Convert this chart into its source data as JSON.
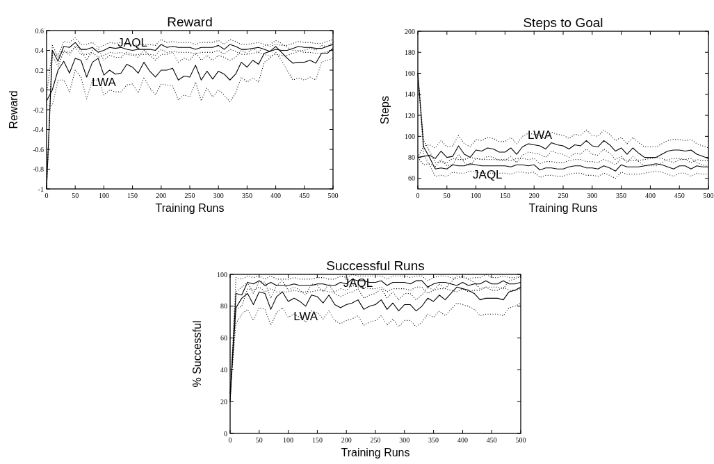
{
  "chart_data": [
    {
      "type": "line",
      "title": "Reward",
      "xlabel": "Training Runs",
      "ylabel": "Reward",
      "x": [
        0,
        10,
        20,
        30,
        40,
        50,
        60,
        70,
        80,
        90,
        100,
        110,
        120,
        130,
        140,
        150,
        160,
        170,
        180,
        190,
        200,
        210,
        220,
        230,
        240,
        250,
        260,
        270,
        280,
        290,
        300,
        310,
        320,
        330,
        340,
        350,
        360,
        370,
        380,
        390,
        400,
        410,
        420,
        430,
        440,
        450,
        460,
        470,
        480,
        490,
        500
      ],
      "xlim": [
        0,
        500
      ],
      "xticks": [
        0,
        50,
        100,
        150,
        200,
        250,
        300,
        350,
        400,
        450,
        500
      ],
      "ylim": [
        -1,
        0.6
      ],
      "yticks": [
        -1,
        -0.8,
        -0.6,
        -0.4,
        -0.2,
        0,
        0.2,
        0.4,
        0.6
      ],
      "series": [
        {
          "name": "JAQL",
          "color": "#000000",
          "values": [
            -1,
            0.4,
            0.29,
            0.44,
            0.43,
            0.48,
            0.41,
            0.41,
            0.43,
            0.38,
            0.4,
            0.43,
            0.42,
            0.43,
            0.41,
            0.4,
            0.41,
            0.41,
            0.41,
            0.4,
            0.46,
            0.43,
            0.44,
            0.43,
            0.43,
            0.43,
            0.41,
            0.43,
            0.43,
            0.43,
            0.45,
            0.41,
            0.46,
            0.44,
            0.41,
            0.41,
            0.42,
            0.43,
            0.41,
            0.39,
            0.41,
            0.4,
            0.4,
            0.42,
            0.44,
            0.43,
            0.43,
            0.42,
            0.42,
            0.44,
            0.46
          ]
        },
        {
          "name": "LWA",
          "color": "#000000",
          "values": [
            -0.11,
            0.0,
            0.2,
            0.29,
            0.17,
            0.32,
            0.3,
            0.13,
            0.28,
            0.32,
            0.15,
            0.2,
            0.16,
            0.17,
            0.26,
            0.23,
            0.17,
            0.28,
            0.19,
            0.13,
            0.2,
            0.2,
            0.22,
            0.1,
            0.14,
            0.13,
            0.25,
            0.1,
            0.19,
            0.11,
            0.19,
            0.16,
            0.1,
            0.16,
            0.28,
            0.23,
            0.3,
            0.26,
            0.37,
            0.39,
            0.44,
            0.38,
            0.32,
            0.27,
            0.28,
            0.28,
            0.3,
            0.27,
            0.37,
            0.37,
            0.42
          ]
        },
        {
          "color": "#000000",
          "line_style": "dotted",
          "values": [
            -1,
            0.45,
            0.34,
            0.49,
            0.48,
            0.53,
            0.46,
            0.46,
            0.48,
            0.43,
            0.45,
            0.48,
            0.47,
            0.48,
            0.46,
            0.45,
            0.46,
            0.46,
            0.46,
            0.45,
            0.51,
            0.48,
            0.49,
            0.48,
            0.48,
            0.48,
            0.46,
            0.48,
            0.48,
            0.48,
            0.5,
            0.46,
            0.51,
            0.49,
            0.46,
            0.46,
            0.47,
            0.48,
            0.46,
            0.44,
            0.46,
            0.45,
            0.45,
            0.47,
            0.49,
            0.48,
            0.48,
            0.47,
            0.47,
            0.49,
            0.51
          ]
        },
        {
          "color": "#000000",
          "line_style": "dotted",
          "values": [
            -1,
            0.35,
            0.24,
            0.39,
            0.38,
            0.43,
            0.36,
            0.36,
            0.38,
            0.33,
            0.35,
            0.38,
            0.37,
            0.38,
            0.36,
            0.35,
            0.36,
            0.36,
            0.36,
            0.35,
            0.41,
            0.38,
            0.39,
            0.38,
            0.38,
            0.38,
            0.36,
            0.38,
            0.38,
            0.38,
            0.4,
            0.36,
            0.41,
            0.39,
            0.36,
            0.36,
            0.37,
            0.38,
            0.36,
            0.34,
            0.36,
            0.35,
            0.35,
            0.37,
            0.39,
            0.38,
            0.38,
            0.37,
            0.37,
            0.39,
            0.41
          ]
        },
        {
          "color": "#000000",
          "line_style": "dotted",
          "values": [
            -0.05,
            0.4,
            0.33,
            0.4,
            0.35,
            0.45,
            0.4,
            0.3,
            0.4,
            0.42,
            0.3,
            0.35,
            0.33,
            0.33,
            0.38,
            0.36,
            0.33,
            0.4,
            0.35,
            0.3,
            0.36,
            0.36,
            0.38,
            0.28,
            0.32,
            0.3,
            0.38,
            0.3,
            0.35,
            0.3,
            0.35,
            0.33,
            0.3,
            0.33,
            0.4,
            0.37,
            0.42,
            0.38,
            0.45,
            0.46,
            0.5,
            0.47,
            0.43,
            0.4,
            0.4,
            0.4,
            0.42,
            0.4,
            0.45,
            0.44,
            0.48
          ]
        },
        {
          "color": "#000000",
          "line_style": "dotted",
          "values": [
            -0.15,
            -0.16,
            0.1,
            0.1,
            -0.02,
            0.2,
            0.13,
            -0.09,
            0.1,
            0.1,
            -0.05,
            0.0,
            -0.02,
            -0.02,
            0.05,
            0.06,
            -0.03,
            0.13,
            0.02,
            -0.05,
            0.06,
            0.05,
            0.04,
            -0.1,
            -0.05,
            -0.07,
            0.08,
            -0.11,
            0.02,
            -0.07,
            0.0,
            -0.05,
            -0.12,
            -0.03,
            0.13,
            0.08,
            0.12,
            0.08,
            0.28,
            0.32,
            0.38,
            0.3,
            0.2,
            0.1,
            0.12,
            0.1,
            0.13,
            0.1,
            0.28,
            0.3,
            0.32
          ]
        }
      ]
    },
    {
      "type": "line",
      "title": "Steps to Goal",
      "xlabel": "Training Runs",
      "ylabel": "Steps",
      "x": [
        0,
        10,
        20,
        30,
        40,
        50,
        60,
        70,
        80,
        90,
        100,
        110,
        120,
        130,
        140,
        150,
        160,
        170,
        180,
        190,
        200,
        210,
        220,
        230,
        240,
        250,
        260,
        270,
        280,
        290,
        300,
        310,
        320,
        330,
        340,
        350,
        360,
        370,
        380,
        390,
        400,
        410,
        420,
        430,
        440,
        450,
        460,
        470,
        480,
        490,
        500
      ],
      "xlim": [
        0,
        500
      ],
      "xticks": [
        0,
        50,
        100,
        150,
        200,
        250,
        300,
        350,
        400,
        450,
        500
      ],
      "ylim": [
        50,
        200
      ],
      "yticks": [
        60,
        80,
        100,
        120,
        140,
        160,
        180,
        200
      ],
      "series": [
        {
          "name": "LWA",
          "color": "#000000",
          "values": [
            80,
            81,
            82,
            79,
            86,
            80,
            81,
            91,
            83,
            80,
            87,
            86,
            89,
            88,
            85,
            85,
            89,
            83,
            90,
            93,
            92,
            91,
            88,
            94,
            92,
            91,
            88,
            92,
            91,
            96,
            91,
            90,
            96,
            92,
            86,
            89,
            83,
            89,
            84,
            80,
            80,
            80,
            83,
            86,
            87,
            87,
            86,
            87,
            83,
            81,
            79
          ]
        },
        {
          "name": "JAQL",
          "color": "#000000",
          "values": [
            160,
            90,
            80,
            69,
            70,
            69,
            73,
            72,
            72,
            74,
            73,
            72,
            72,
            72,
            72,
            72,
            71,
            73,
            73,
            72,
            73,
            68,
            70,
            70,
            69,
            69,
            71,
            72,
            72,
            70,
            70,
            69,
            72,
            70,
            67,
            73,
            71,
            71,
            71,
            72,
            73,
            74,
            73,
            71,
            69,
            72,
            72,
            69,
            72,
            71,
            71
          ]
        },
        {
          "color": "#000000",
          "line_style": "dotted",
          "values": [
            80,
            91,
            92,
            89,
            96,
            90,
            91,
            101,
            93,
            90,
            97,
            96,
            99,
            98,
            95,
            95,
            99,
            93,
            100,
            103,
            102,
            101,
            98,
            104,
            102,
            101,
            98,
            102,
            101,
            106,
            101,
            100,
            106,
            102,
            96,
            99,
            93,
            99,
            94,
            90,
            90,
            90,
            93,
            96,
            97,
            97,
            96,
            97,
            93,
            91,
            89
          ]
        },
        {
          "color": "#000000",
          "line_style": "dotted",
          "values": [
            80,
            73,
            74,
            71,
            78,
            72,
            73,
            83,
            75,
            72,
            79,
            78,
            81,
            80,
            77,
            77,
            81,
            75,
            82,
            85,
            84,
            83,
            80,
            86,
            84,
            83,
            80,
            84,
            83,
            88,
            83,
            82,
            88,
            84,
            78,
            81,
            75,
            81,
            76,
            72,
            72,
            72,
            75,
            78,
            79,
            79,
            78,
            79,
            75,
            73,
            71
          ]
        },
        {
          "color": "#000000",
          "line_style": "dotted",
          "values": [
            160,
            96,
            86,
            75,
            76,
            75,
            79,
            78,
            78,
            80,
            79,
            78,
            78,
            78,
            78,
            78,
            77,
            79,
            79,
            78,
            79,
            74,
            76,
            76,
            75,
            75,
            77,
            78,
            78,
            76,
            76,
            75,
            78,
            76,
            73,
            79,
            77,
            77,
            77,
            78,
            79,
            80,
            79,
            77,
            75,
            78,
            78,
            75,
            78,
            77,
            77
          ]
        },
        {
          "color": "#000000",
          "line_style": "dotted",
          "values": [
            160,
            83,
            73,
            62,
            63,
            62,
            66,
            65,
            65,
            67,
            66,
            65,
            65,
            65,
            65,
            65,
            64,
            66,
            66,
            65,
            66,
            61,
            63,
            63,
            62,
            62,
            64,
            65,
            65,
            63,
            63,
            62,
            65,
            63,
            60,
            66,
            64,
            64,
            64,
            65,
            66,
            67,
            66,
            64,
            62,
            65,
            65,
            62,
            65,
            64,
            64
          ]
        }
      ]
    },
    {
      "type": "line",
      "title": "Successful Runs",
      "xlabel": "Training Runs",
      "ylabel": "% Successful",
      "x": [
        0,
        10,
        20,
        30,
        40,
        50,
        60,
        70,
        80,
        90,
        100,
        110,
        120,
        130,
        140,
        150,
        160,
        170,
        180,
        190,
        200,
        210,
        220,
        230,
        240,
        250,
        260,
        270,
        280,
        290,
        300,
        310,
        320,
        330,
        340,
        350,
        360,
        370,
        380,
        390,
        400,
        410,
        420,
        430,
        440,
        450,
        460,
        470,
        480,
        490,
        500
      ],
      "xlim": [
        0,
        500
      ],
      "xticks": [
        0,
        50,
        100,
        150,
        200,
        250,
        300,
        350,
        400,
        450,
        500
      ],
      "ylim": [
        0,
        100
      ],
      "yticks": [
        0,
        20,
        40,
        60,
        80,
        100
      ],
      "series": [
        {
          "name": "JAQL",
          "color": "#000000",
          "values": [
            20,
            88,
            87,
            95,
            94,
            96,
            93,
            95,
            93,
            93,
            93,
            94,
            93,
            93,
            93,
            94,
            94,
            93,
            93,
            95,
            94,
            97,
            96,
            96,
            95,
            95,
            96,
            93,
            95,
            95,
            95,
            94,
            96,
            96,
            92,
            94,
            95,
            95,
            94,
            93,
            95,
            93,
            94,
            94,
            96,
            94,
            94,
            96,
            94,
            94,
            95
          ]
        },
        {
          "name": "LWA",
          "color": "#000000",
          "values": [
            25,
            79,
            85,
            88,
            81,
            89,
            88,
            78,
            86,
            89,
            83,
            85,
            83,
            80,
            87,
            86,
            82,
            87,
            81,
            79,
            81,
            82,
            84,
            78,
            80,
            81,
            84,
            78,
            82,
            77,
            81,
            81,
            77,
            80,
            85,
            83,
            87,
            84,
            88,
            92,
            91,
            90,
            88,
            84,
            85,
            85,
            85,
            84,
            89,
            90,
            92
          ]
        },
        {
          "color": "#000000",
          "line_style": "dotted",
          "values": [
            20,
            98,
            97,
            99,
            98,
            99,
            97,
            99,
            97,
            97,
            97,
            98,
            97,
            97,
            97,
            98,
            98,
            97,
            97,
            99,
            98,
            100,
            99,
            99,
            99,
            99,
            99,
            97,
            99,
            99,
            99,
            98,
            99,
            99,
            96,
            98,
            99,
            99,
            98,
            97,
            99,
            97,
            98,
            98,
            100,
            98,
            98,
            99,
            98,
            98,
            99
          ]
        },
        {
          "color": "#000000",
          "line_style": "dotted",
          "values": [
            20,
            78,
            80,
            91,
            90,
            92,
            89,
            91,
            89,
            89,
            89,
            90,
            89,
            89,
            89,
            90,
            90,
            89,
            89,
            91,
            90,
            93,
            92,
            92,
            91,
            91,
            92,
            89,
            91,
            91,
            91,
            90,
            92,
            92,
            88,
            90,
            91,
            91,
            90,
            89,
            91,
            89,
            90,
            90,
            92,
            90,
            90,
            92,
            90,
            90,
            91
          ]
        },
        {
          "color": "#000000",
          "line_style": "dotted",
          "values": [
            25,
            89,
            92,
            95,
            88,
            96,
            95,
            85,
            93,
            96,
            90,
            92,
            90,
            87,
            94,
            93,
            89,
            94,
            88,
            86,
            88,
            89,
            91,
            85,
            87,
            88,
            91,
            85,
            89,
            84,
            88,
            88,
            84,
            87,
            92,
            90,
            94,
            91,
            95,
            99,
            98,
            97,
            95,
            91,
            92,
            92,
            92,
            91,
            96,
            97,
            99
          ]
        },
        {
          "color": "#000000",
          "line_style": "dotted",
          "values": [
            25,
            69,
            75,
            78,
            71,
            79,
            78,
            68,
            76,
            79,
            73,
            75,
            73,
            70,
            77,
            76,
            72,
            77,
            71,
            69,
            71,
            72,
            74,
            68,
            70,
            71,
            74,
            68,
            72,
            67,
            71,
            71,
            67,
            70,
            75,
            73,
            77,
            74,
            78,
            82,
            81,
            80,
            78,
            74,
            75,
            75,
            75,
            74,
            79,
            80,
            82
          ]
        }
      ]
    }
  ]
}
